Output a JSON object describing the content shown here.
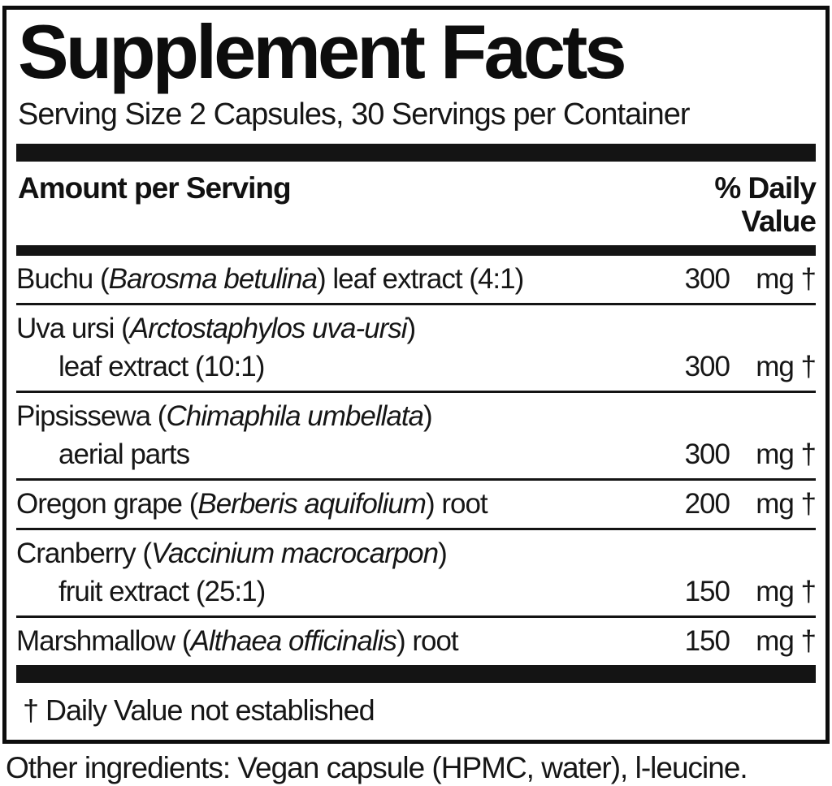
{
  "label": {
    "title": "Supplement Facts",
    "serving_line": "Serving Size 2 Capsules, 30 Servings per Container",
    "columns": {
      "left": "Amount per Serving",
      "right_line1": "% Daily",
      "right_line2": "Value"
    },
    "rows": [
      {
        "prefix": "Buchu (",
        "latin": "Barosma betulina",
        "suffix": ") leaf extract (4:1)",
        "amount": "300",
        "unit": "mg †"
      },
      {
        "prefix": "Uva ursi (",
        "latin": "Arctostaphylos uva-ursi",
        "suffix": ")",
        "line2": "leaf extract (10:1)",
        "amount": "300",
        "unit": "mg †"
      },
      {
        "prefix": "Pipsissewa (",
        "latin": "Chimaphila umbellata",
        "suffix": ")",
        "line2": "aerial parts",
        "amount": "300",
        "unit": "mg †"
      },
      {
        "prefix": "Oregon grape (",
        "latin": "Berberis aquifolium",
        "suffix": ") root",
        "amount": "200",
        "unit": "mg †"
      },
      {
        "prefix": "Cranberry (",
        "latin": "Vaccinium macrocarpon",
        "suffix": ")",
        "line2": "fruit extract (25:1)",
        "amount": "150",
        "unit": "mg †"
      },
      {
        "prefix": "Marshmallow (",
        "latin": "Althaea officinalis",
        "suffix": ") root",
        "amount": "150",
        "unit": "mg †"
      }
    ],
    "footnote": "† Daily Value not established",
    "other_ingredients": "Other ingredients: Vegan capsule (HPMC, water), l-leucine.",
    "colors": {
      "ink": "#141414",
      "background": "#ffffff"
    }
  }
}
